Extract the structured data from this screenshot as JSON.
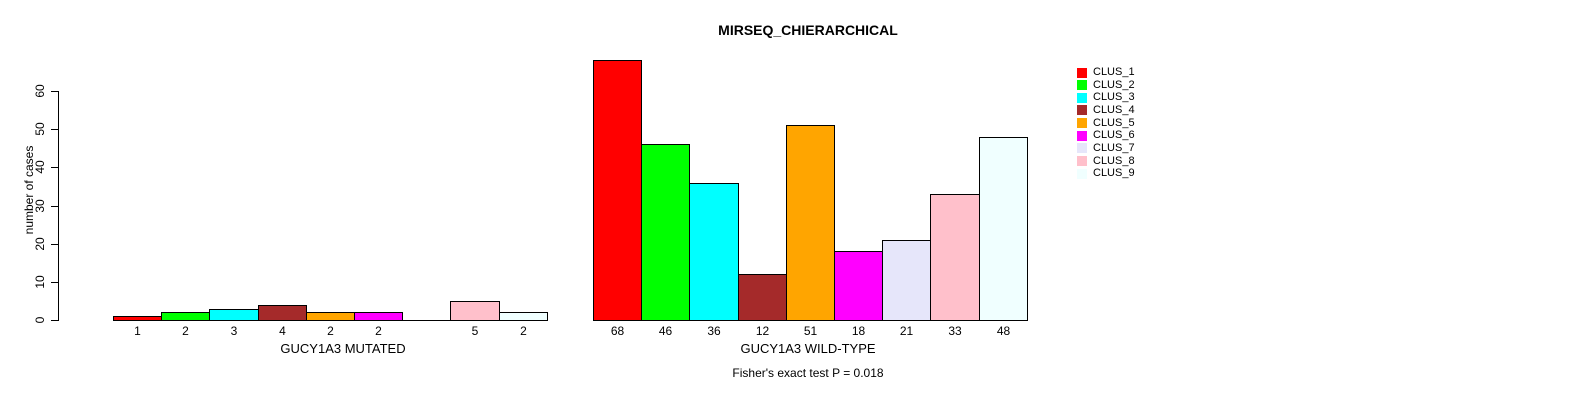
{
  "chart_data": {
    "type": "bar",
    "title": "MIRSEQ_CHIERARCHICAL",
    "ylabel": "number of cases",
    "ylim": [
      0,
      60
    ],
    "yticks": [
      0,
      10,
      20,
      30,
      40,
      50,
      60
    ],
    "grid": false,
    "legend_position": "right",
    "annotation": "Fisher's exact test P = 0.018",
    "groups": [
      {
        "key": "mutated",
        "label": "GUCY1A3 MUTATED"
      },
      {
        "key": "wild_type",
        "label": "GUCY1A3 WILD-TYPE"
      }
    ],
    "clusters": [
      {
        "name": "CLUS_1",
        "color": "#FF0000",
        "mutated": 1,
        "wild_type": 68
      },
      {
        "name": "CLUS_2",
        "color": "#00FF00",
        "mutated": 2,
        "wild_type": 46
      },
      {
        "name": "CLUS_3",
        "color": "#00FFFF",
        "mutated": 3,
        "wild_type": 36
      },
      {
        "name": "CLUS_4",
        "color": "#A52A2A",
        "mutated": 4,
        "wild_type": 12
      },
      {
        "name": "CLUS_5",
        "color": "#FFA500",
        "mutated": 2,
        "wild_type": 51
      },
      {
        "name": "CLUS_6",
        "color": "#FF00FF",
        "mutated": 2,
        "wild_type": 18
      },
      {
        "name": "CLUS_7",
        "color": "#E6E6FA",
        "mutated": 0,
        "wild_type": 21
      },
      {
        "name": "CLUS_8",
        "color": "#FFC0CB",
        "mutated": 5,
        "wild_type": 33
      },
      {
        "name": "CLUS_9",
        "color": "#F0FFFF",
        "mutated": 2,
        "wild_type": 48
      }
    ]
  }
}
